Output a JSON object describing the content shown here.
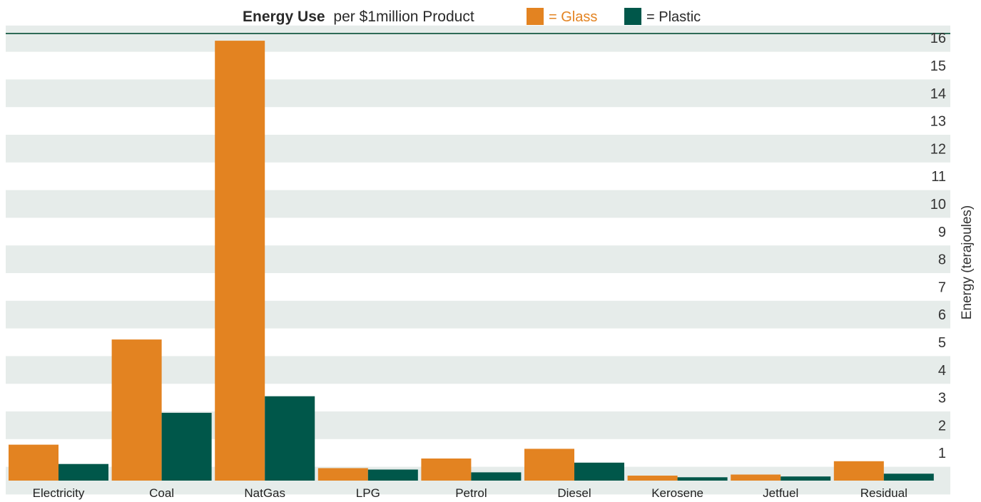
{
  "chart_data": {
    "type": "bar",
    "title_bold": "Energy Use",
    "title_rest": "per $1million Product",
    "ylabel": "Energy (terajoules)",
    "xlabel": "",
    "ylim": [
      0,
      16
    ],
    "y_ticks": [
      "1",
      "2",
      "3",
      "4",
      "5",
      "6",
      "7",
      "8",
      "9",
      "10",
      "11",
      "12",
      "13",
      "14",
      "15",
      "16"
    ],
    "categories": [
      "Electricity",
      "Coal",
      "NatGas",
      "LPG",
      "Petrol",
      "Diesel",
      "Kerosene",
      "Jetfuel",
      "Residual"
    ],
    "series": [
      {
        "name": "= Glass",
        "color": "#e38321",
        "values": [
          1.3,
          5.1,
          15.9,
          0.45,
          0.8,
          1.15,
          0.18,
          0.22,
          0.7
        ]
      },
      {
        "name": "= Plastic",
        "color": "#00574a",
        "values": [
          0.6,
          2.45,
          3.05,
          0.4,
          0.3,
          0.65,
          0.12,
          0.15,
          0.25
        ]
      }
    ],
    "grid": "alternating horizontal bands",
    "band_color": "#e6ecea",
    "axis_line_color": "#2f6b57",
    "legend_position": "top"
  }
}
